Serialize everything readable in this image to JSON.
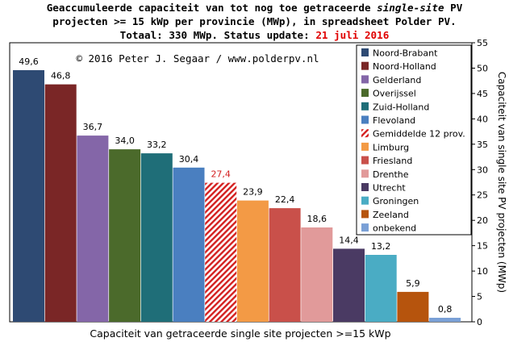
{
  "header": {
    "line1_a": "Geaccumuleerde capaciteit van tot nog toe getraceerde ",
    "line1_em": "single-site",
    "line1_b": " PV",
    "line2": "projecten >= 15 kWp per provincie (MWp), in spreadsheet Polder PV.",
    "line3_a": "Totaal: 330 MWp. Status update: ",
    "line3_date": "21 juli 2016"
  },
  "chart_data": {
    "type": "bar",
    "copyright": "© 2016 Peter J. Segaar / www.polderpv.nl",
    "xlabel": "Capaciteit van getraceerde single site projecten >=15 kWp",
    "ylabel": "Capaciteit van single site PV projecten (MWp)",
    "ylim": [
      0,
      55
    ],
    "yticks": [
      0,
      5,
      10,
      15,
      20,
      25,
      30,
      35,
      40,
      45,
      50,
      55
    ],
    "axis_side": "right",
    "grid": false,
    "legend_position": "top-right",
    "categories": [
      "Noord-Brabant",
      "Noord-Holland",
      "Gelderland",
      "Overijssel",
      "Zuid-Holland",
      "Flevoland",
      "Gemiddelde 12 prov.",
      "Limburg",
      "Friesland",
      "Drenthe",
      "Utrecht",
      "Groningen",
      "Zeeland",
      "onbekend"
    ],
    "values": [
      49.6,
      46.8,
      36.7,
      34.0,
      33.2,
      30.4,
      27.4,
      23.9,
      22.4,
      18.6,
      14.4,
      13.2,
      5.9,
      0.8
    ],
    "value_labels": [
      "49,6",
      "46,8",
      "36,7",
      "34,0",
      "33,2",
      "30,4",
      "27,4",
      "23,9",
      "22,4",
      "18,6",
      "14,4",
      "13,2",
      "5,9",
      "0,8"
    ],
    "colors": [
      "#2e4a73",
      "#7a2626",
      "#8466a8",
      "#4b6a2b",
      "#1f6e78",
      "#4a7fc0",
      "hatch",
      "#f39a45",
      "#c9504a",
      "#e19a9a",
      "#4a3a63",
      "#4aacc4",
      "#b6540d",
      "#7aa0d6"
    ],
    "hatch_color": "#d42020",
    "highlight_label_color": "#d42020"
  }
}
